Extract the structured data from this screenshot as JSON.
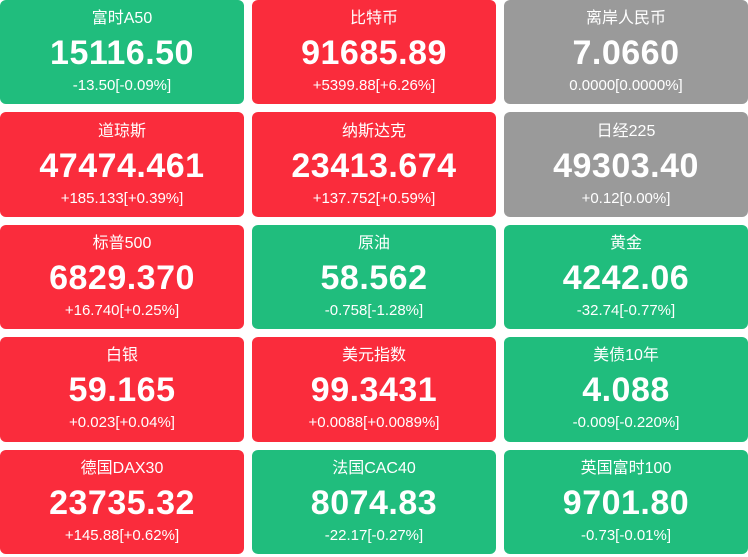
{
  "colors": {
    "up_red": "#fa2c3c",
    "down_green": "#20bd7d",
    "flat_gray": "#9a9a9a",
    "text_white": "#ffffff"
  },
  "tiles": [
    {
      "id": "ftse-a50",
      "name": "富时A50",
      "value": "15116.50",
      "change": "-13.50[-0.09%]",
      "state": "down"
    },
    {
      "id": "bitcoin",
      "name": "比特币",
      "value": "91685.89",
      "change": "+5399.88[+6.26%]",
      "state": "up"
    },
    {
      "id": "offshore-cny",
      "name": "离岸人民币",
      "value": "7.0660",
      "change": "0.0000[0.0000%]",
      "state": "flat"
    },
    {
      "id": "dow-jones",
      "name": "道琼斯",
      "value": "47474.461",
      "change": "+185.133[+0.39%]",
      "state": "up"
    },
    {
      "id": "nasdaq",
      "name": "纳斯达克",
      "value": "23413.674",
      "change": "+137.752[+0.59%]",
      "state": "up"
    },
    {
      "id": "nikkei-225",
      "name": "日经225",
      "value": "49303.40",
      "change": "+0.12[0.00%]",
      "state": "flat"
    },
    {
      "id": "sp500",
      "name": "标普500",
      "value": "6829.370",
      "change": "+16.740[+0.25%]",
      "state": "up"
    },
    {
      "id": "crude-oil",
      "name": "原油",
      "value": "58.562",
      "change": "-0.758[-1.28%]",
      "state": "down"
    },
    {
      "id": "gold",
      "name": "黄金",
      "value": "4242.06",
      "change": "-32.74[-0.77%]",
      "state": "down"
    },
    {
      "id": "silver",
      "name": "白银",
      "value": "59.165",
      "change": "+0.023[+0.04%]",
      "state": "up"
    },
    {
      "id": "usd-index",
      "name": "美元指数",
      "value": "99.3431",
      "change": "+0.0088[+0.0089%]",
      "state": "up"
    },
    {
      "id": "us-10y-treasury",
      "name": "美债10年",
      "value": "4.088",
      "change": "-0.009[-0.220%]",
      "state": "down"
    },
    {
      "id": "germany-dax30",
      "name": "德国DAX30",
      "value": "23735.32",
      "change": "+145.88[+0.62%]",
      "state": "up"
    },
    {
      "id": "france-cac40",
      "name": "法国CAC40",
      "value": "8074.83",
      "change": "-22.17[-0.27%]",
      "state": "down"
    },
    {
      "id": "uk-ftse100",
      "name": "英国富时100",
      "value": "9701.80",
      "change": "-0.73[-0.01%]",
      "state": "down"
    }
  ]
}
